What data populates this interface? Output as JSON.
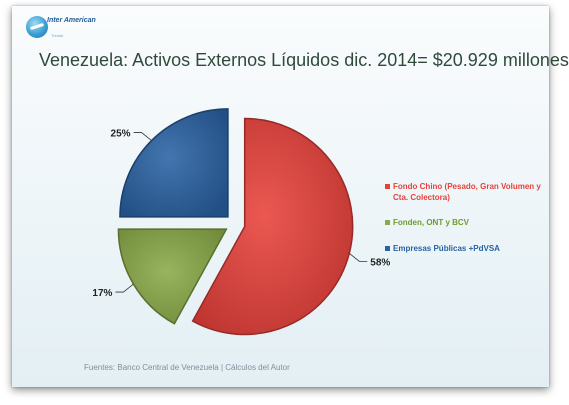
{
  "brand": {
    "name": "Inter American",
    "tagline": "Trends"
  },
  "title": "Venezuela: Activos Externos Líquidos  dic. 2014= $20.929 millones",
  "source": "Fuentes: Banco Central de Venezuela | Cálculos del Autor",
  "chart_data": {
    "type": "pie",
    "title": "Venezuela: Activos Externos Líquidos  dic. 2014= $20.929 millones",
    "legend_position": "right",
    "slices": [
      {
        "label": "Fondo Chino (Pesado, Gran Volumen y Cta. Colectora)",
        "value": 58,
        "value_label": "58%",
        "color": "#e8413a"
      },
      {
        "label": "Fonden, ONT y BCV",
        "value": 17,
        "value_label": "17%",
        "color": "#8aaa48"
      },
      {
        "label": "Empresas Públicas +PdVSA",
        "value": 25,
        "value_label": "25%",
        "color": "#2a62a3"
      }
    ]
  }
}
